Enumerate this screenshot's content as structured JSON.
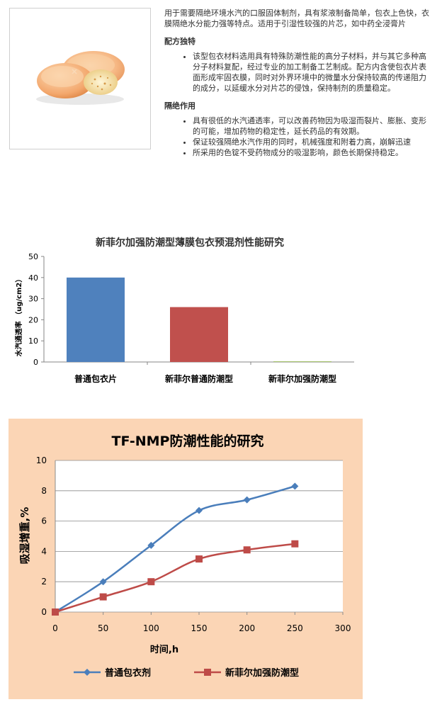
{
  "product": {
    "intro": "用于需要隔绝环境水汽的口服固体制剂，具有浆液制备简单，包衣上色快，衣膜隔绝水分能力强等特点。适用于引湿性较强的片芯，如中药全浸膏片",
    "sections": [
      {
        "heading": "配方独特",
        "bullets": [
          "该型包衣材料选用具有特殊防潮性能的高分子材料，并与其它多种高分子材料复配，经过专业的加工制备工艺制成。配方内含使包衣片表面形成牢固衣膜，同时对外界环境中的微量水分保持较高的传递阻力的成分，以延缓水分对片芯的侵蚀，保持制剂的质量稳定。"
        ]
      },
      {
        "heading": "隔绝作用",
        "bullets": [
          "具有很低的水汽通透率，可以改善药物因为吸湿而裂片、膨胀、变形的可能，增加药物的稳定性，延长药品的有效期。",
          "保证较强隔绝水汽作用的同时，机械强度和附着力高，崩解迅速",
          "所采用的色锭不受药物成分的吸湿影响，颜色长期保持稳定。"
        ]
      }
    ]
  },
  "chart_data": [
    {
      "type": "bar",
      "title": "新菲尔加强防潮型薄膜包衣预混剂性能研究",
      "ylabel": "水汽通透率 （ug/cm2）",
      "xlabel": "",
      "categories": [
        "普通包衣片",
        "新菲尔普通防潮型",
        "新菲尔加强防潮型"
      ],
      "values": [
        40,
        26,
        0.3
      ],
      "colors": [
        "#4f81bd",
        "#c0504d",
        "#9bbb59"
      ],
      "ylim": [
        0,
        50
      ],
      "yticks": [
        0,
        10,
        20,
        30,
        40,
        50
      ],
      "grid": false,
      "legend": "none"
    },
    {
      "type": "line",
      "title": "TF-NMP防潮性能的研究",
      "xlabel": "时间,h",
      "ylabel": "吸湿增重,%",
      "xlim": [
        0,
        300
      ],
      "ylim": [
        0,
        10
      ],
      "xticks": [
        0,
        50,
        100,
        150,
        200,
        250,
        300
      ],
      "yticks": [
        0,
        2,
        4,
        6,
        8,
        10
      ],
      "grid": true,
      "legend": "bottom",
      "series": [
        {
          "name": "普通包衣剂",
          "color": "#4a7ebb",
          "marker": "diamond",
          "x": [
            0,
            50,
            100,
            150,
            200,
            250
          ],
          "values": [
            0,
            2.0,
            4.4,
            6.7,
            7.4,
            8.3
          ]
        },
        {
          "name": "新菲尔加强防潮型",
          "color": "#be4b48",
          "marker": "square",
          "x": [
            0,
            50,
            100,
            150,
            200,
            250
          ],
          "values": [
            0,
            1.0,
            2.0,
            3.5,
            4.1,
            4.5
          ]
        }
      ]
    }
  ]
}
